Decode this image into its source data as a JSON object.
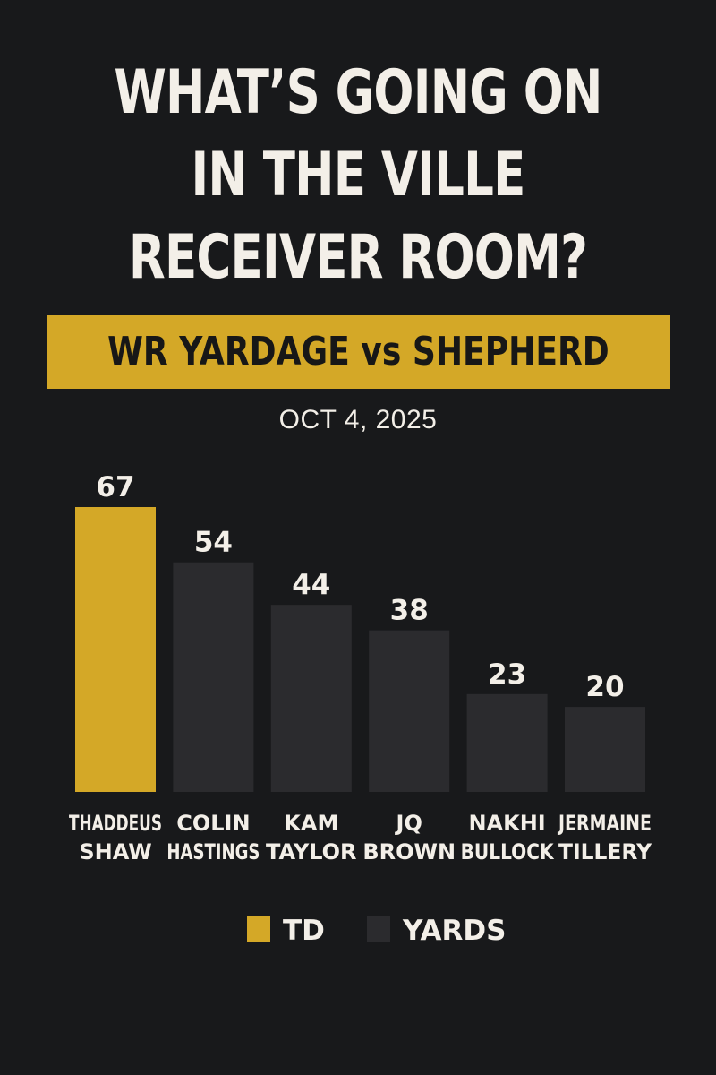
{
  "header": {
    "title_lines": [
      "WHAT’S GOING ON",
      "IN THE VILLE",
      "RECEIVER ROOM?"
    ],
    "banner": "WR YARDAGE vs SHEPHERD",
    "date": "OCT 4, 2025"
  },
  "colors": {
    "background": "#18191b",
    "accent": "#d4a827",
    "bar_default": "#2b2b2e",
    "text": "#f3efe8"
  },
  "chart_data": {
    "type": "bar",
    "title": "WR YARDAGE vs SHEPHERD",
    "subtitle": "OCT 4, 2025",
    "categories": [
      [
        "THADDEUS",
        "SHAW"
      ],
      [
        "COLIN",
        "HASTINGS"
      ],
      [
        "KAM",
        "TAYLOR"
      ],
      [
        "JQ",
        "BROWN"
      ],
      [
        "NAKHI",
        "BULLOCK"
      ],
      [
        "JERMAINE",
        "TILLERY"
      ]
    ],
    "values": [
      67,
      54,
      44,
      38,
      23,
      20
    ],
    "highlight": [
      "TD",
      "YARDS",
      "YARDS",
      "YARDS",
      "YARDS",
      "YARDS"
    ],
    "xlabel": "",
    "ylabel": "",
    "ylim": [
      0,
      67
    ],
    "grid": false,
    "legend": {
      "placement": "bottom",
      "entries": [
        {
          "label": "TD",
          "color": "#d4a827"
        },
        {
          "label": "YARDS",
          "color": "#2b2b2e"
        }
      ]
    }
  }
}
